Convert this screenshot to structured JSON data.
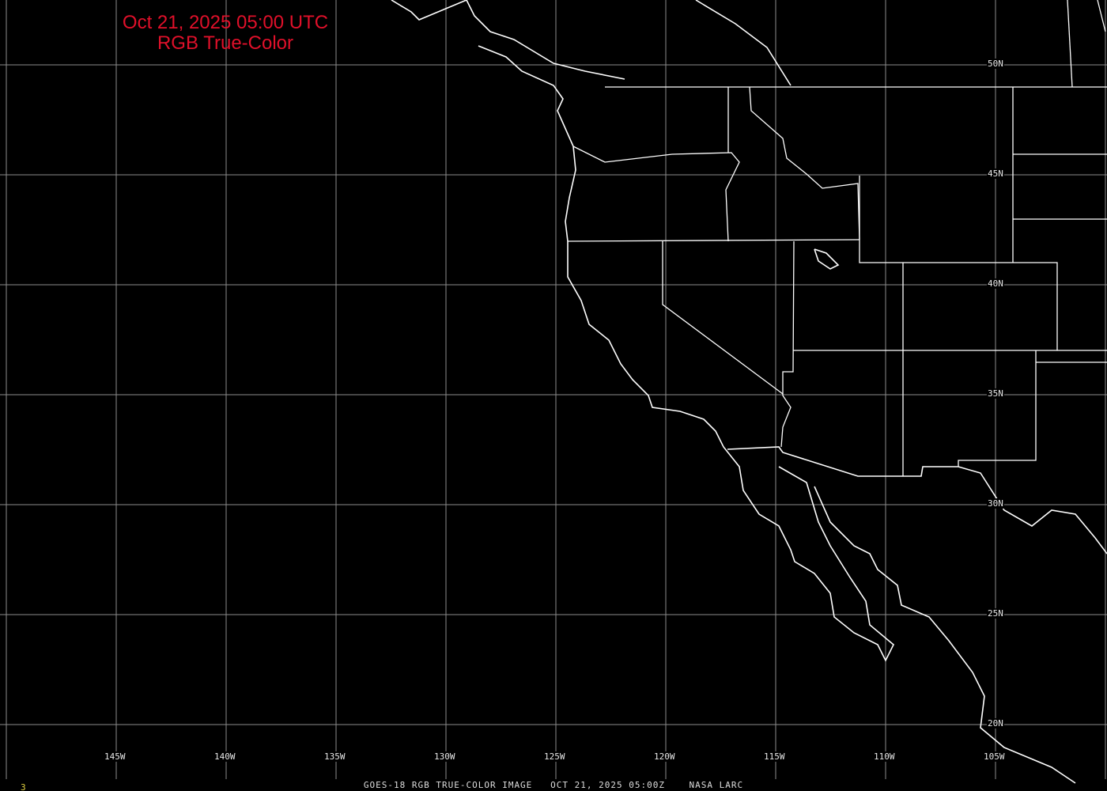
{
  "title": {
    "line1": "Oct 21, 2025 05:00 UTC",
    "line2": "RGB True-Color",
    "color": "#e0102a"
  },
  "grid": {
    "lon_labels": [
      "145W",
      "140W",
      "135W",
      "130W",
      "125W",
      "120W",
      "115W",
      "110W",
      "105W"
    ],
    "lat_labels": [
      "50N",
      "45N",
      "40N",
      "35N",
      "30N",
      "25N",
      "20N"
    ],
    "line_color": "#8c8c8c"
  },
  "caption": "GOES-18 RGB TRUE-COLOR IMAGE   OCT 21, 2025 05:00Z    NASA LARC",
  "frame_number": "3",
  "frame_color": "#e0d040",
  "coastline_color": "#ffffff"
}
